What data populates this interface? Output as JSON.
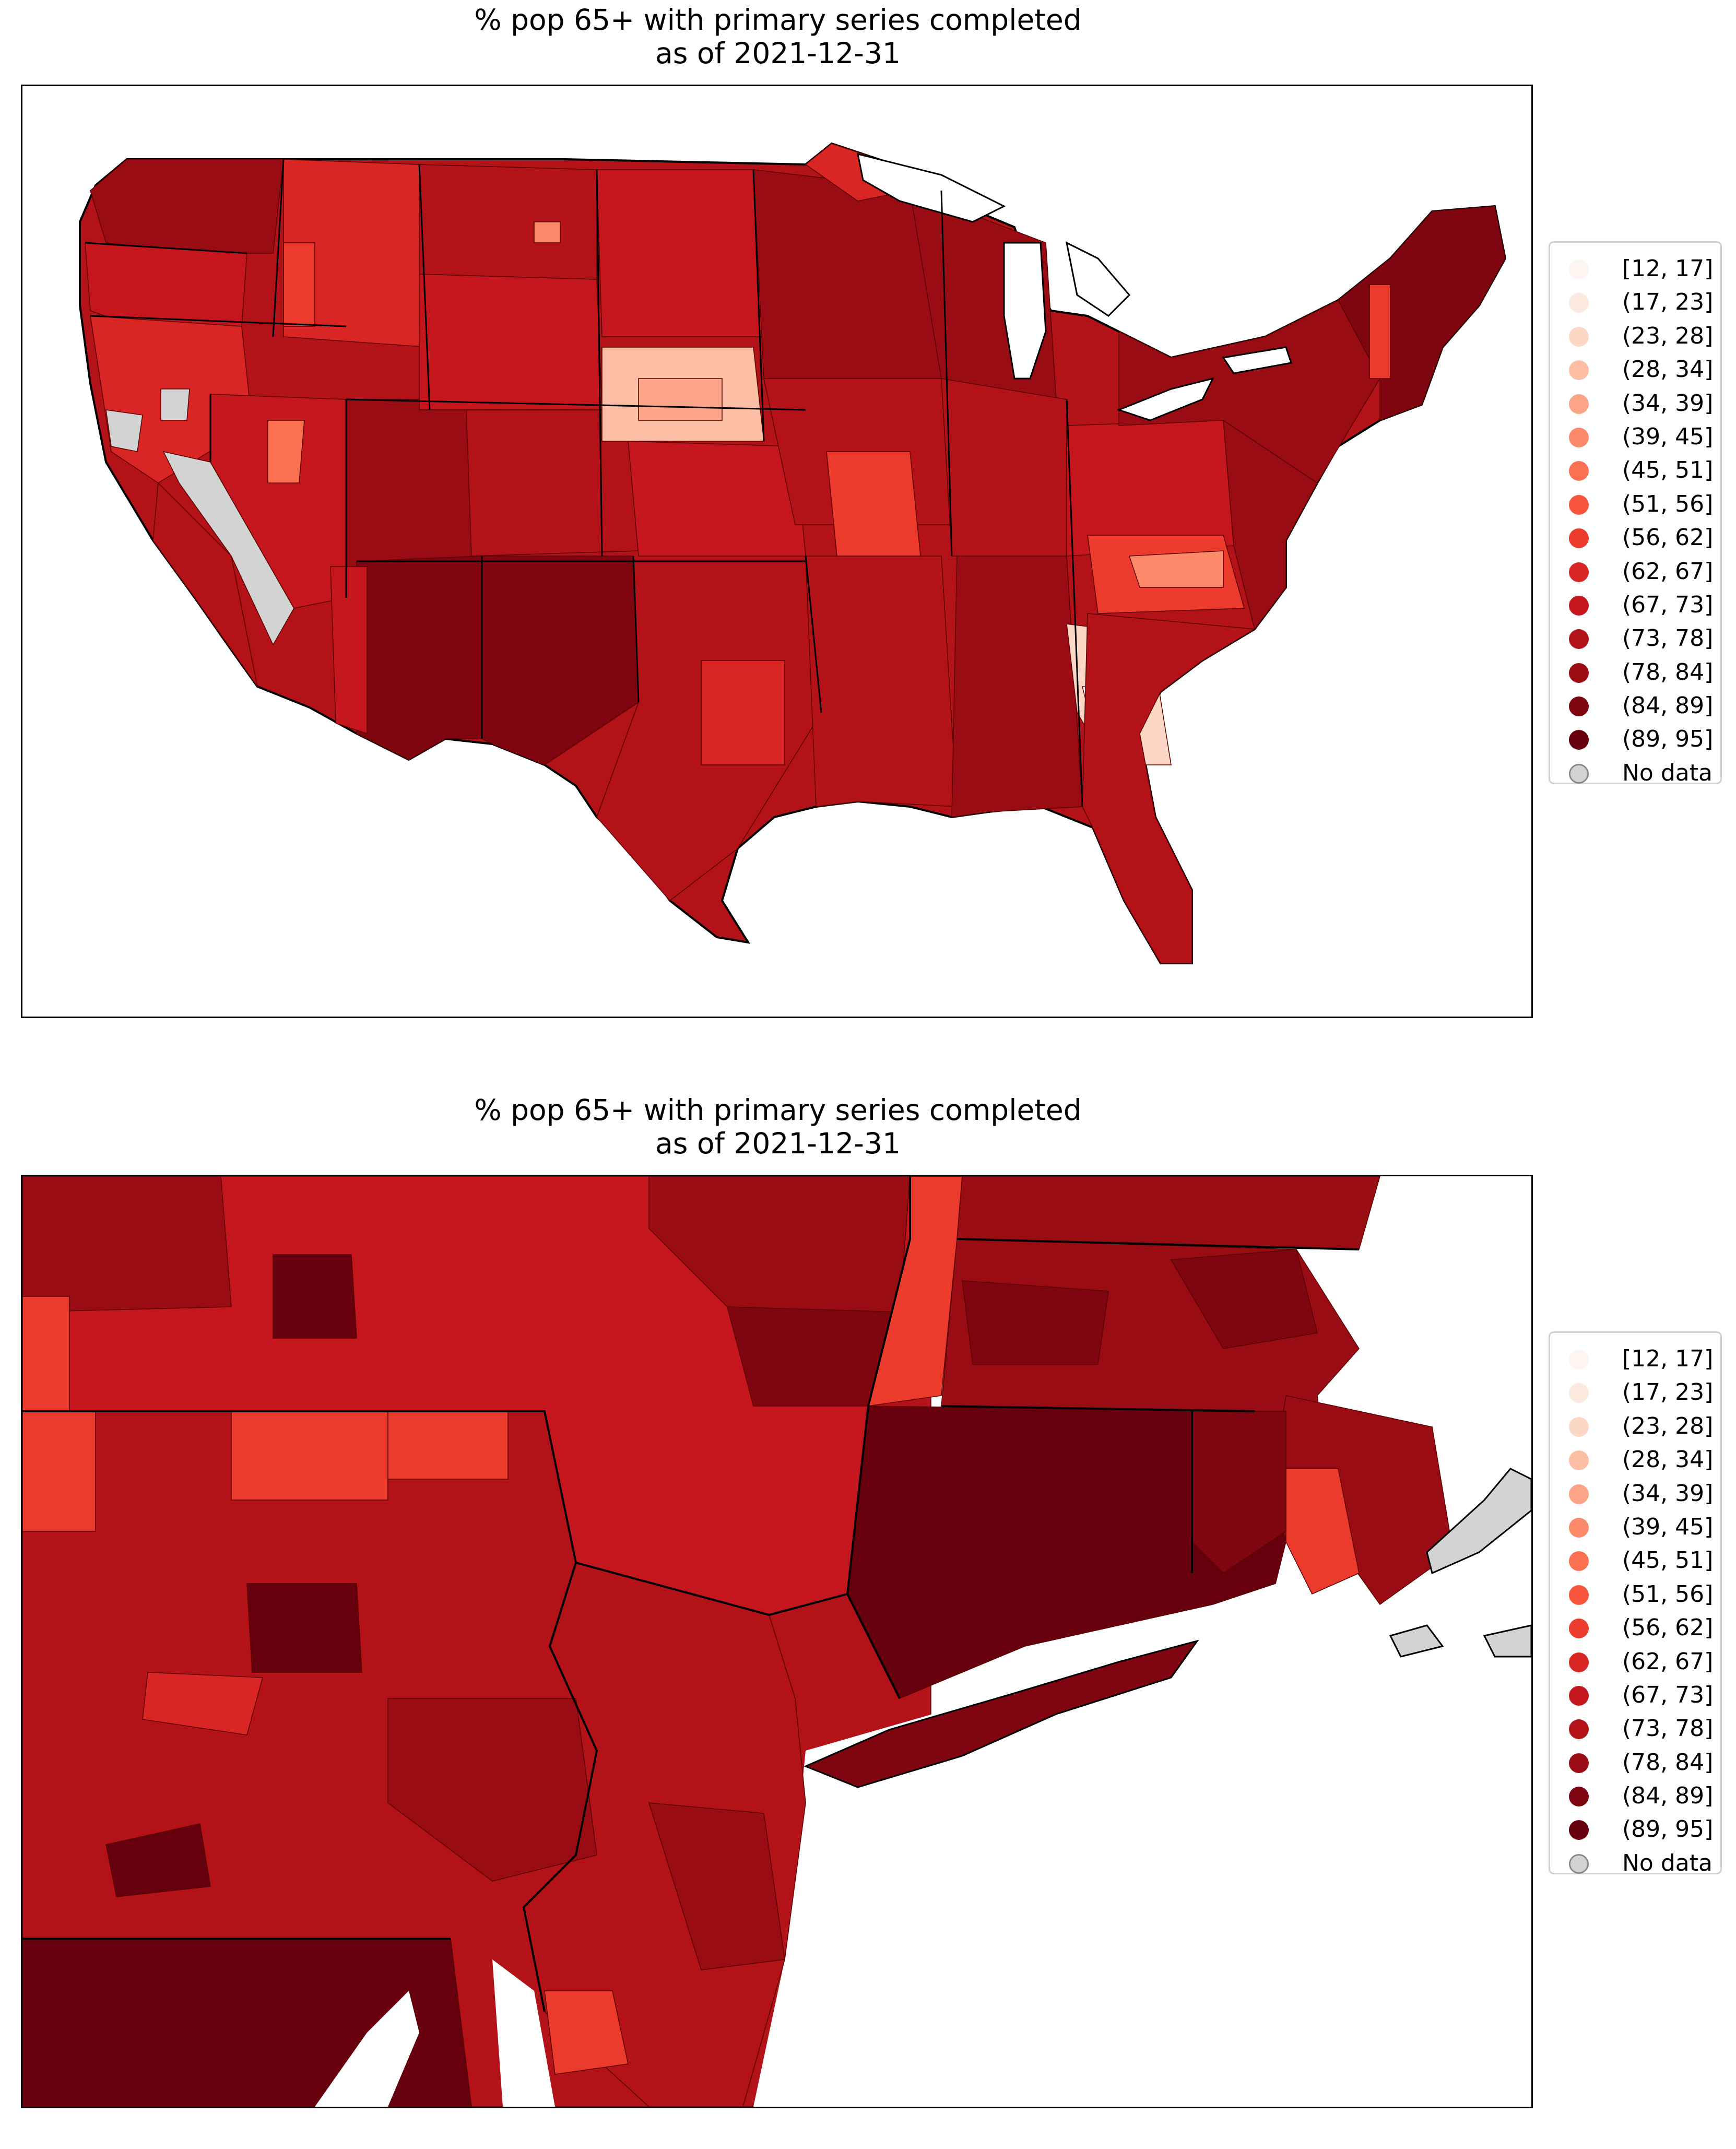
{
  "panels": [
    {
      "title_line1": "% pop 65+ with primary series completed",
      "title_line2": "as of 2021-12-31"
    },
    {
      "title_line1": "% pop 65+ with primary series completed",
      "title_line2": "as of 2021-12-31"
    }
  ],
  "legend": [
    {
      "label": "[12, 17]",
      "color": "#fff5f0"
    },
    {
      "label": "(17, 23]",
      "color": "#fee9df"
    },
    {
      "label": "(23, 28]",
      "color": "#fdd7c5"
    },
    {
      "label": "(28, 34]",
      "color": "#fcbea5"
    },
    {
      "label": "(34, 39]",
      "color": "#fca487"
    },
    {
      "label": "(39, 45]",
      "color": "#fc8a6a"
    },
    {
      "label": "(45, 51]",
      "color": "#fb7050"
    },
    {
      "label": "(51, 56]",
      "color": "#f6553c"
    },
    {
      "label": "(56, 62]",
      "color": "#ec3b2c"
    },
    {
      "label": "(62, 67]",
      "color": "#d92523"
    },
    {
      "label": "(67, 73]",
      "color": "#c4161c"
    },
    {
      "label": "(73, 78]",
      "color": "#b21218"
    },
    {
      "label": "(78, 84]",
      "color": "#9a0c14"
    },
    {
      "label": "(84, 89]",
      "color": "#7f0610"
    },
    {
      "label": "(89, 95]",
      "color": "#67000d"
    },
    {
      "label": "No data",
      "color": "#d3d3d3"
    }
  ],
  "chart_data": [
    {
      "type": "choropleth-map",
      "region": "contiguous United States (counties)",
      "title": "% pop 65+ with primary series completed\nas of 2021-12-31",
      "bins": [
        "[12, 17]",
        "(17, 23]",
        "(23, 28]",
        "(28, 34]",
        "(34, 39]",
        "(39, 45]",
        "(45, 51]",
        "(51, 56]",
        "(56, 62]",
        "(62, 67]",
        "(67, 73]",
        "(73, 78]",
        "(78, 84]",
        "(84, 89]",
        "(89, 95]",
        "No data"
      ],
      "legend_position": "right",
      "no_data_areas": [
        "parts of Nevada",
        "parts of eastern California"
      ],
      "low_value_areas": [
        "Georgia",
        "Nebraska"
      ]
    },
    {
      "type": "choropleth-map",
      "region": "Northeast United States (NY, NJ, PA, CT, MA, RI, VT, NH)",
      "title": "% pop 65+ with primary series completed\nas of 2021-12-31",
      "bins": [
        "[12, 17]",
        "(17, 23]",
        "(23, 28]",
        "(28, 34]",
        "(34, 39]",
        "(39, 45]",
        "(45, 51]",
        "(51, 56]",
        "(56, 62]",
        "(62, 67]",
        "(67, 73]",
        "(73, 78]",
        "(78, 84]",
        "(84, 89]",
        "(89, 95]",
        "No data"
      ],
      "legend_position": "right",
      "no_data_areas": [
        "Cape Cod and islands, Massachusetts"
      ]
    }
  ]
}
